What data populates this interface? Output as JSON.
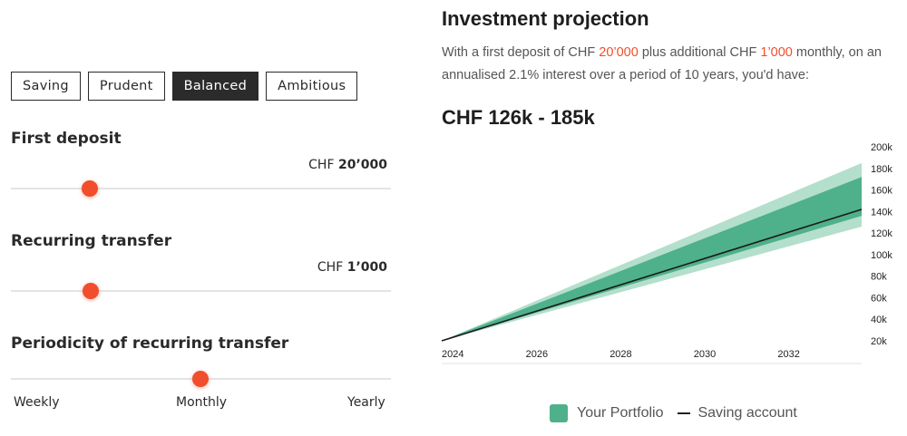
{
  "profiles": {
    "options": [
      "Saving",
      "Prudent",
      "Balanced",
      "Ambitious"
    ],
    "selected": "Balanced"
  },
  "first_deposit": {
    "title": "First deposit",
    "currency": "CHF",
    "amount": "20’000",
    "position_fraction": 0.206
  },
  "recurring_transfer": {
    "title": "Recurring transfer",
    "currency": "CHF",
    "amount": "1’000",
    "position_fraction": 0.21
  },
  "periodicity": {
    "title": "Periodicity of recurring transfer",
    "options": [
      "Weekly",
      "Monthly",
      "Yearly"
    ],
    "selected": "Monthly"
  },
  "projection": {
    "title": "Investment projection",
    "desc_part1": "With a first deposit of CHF ",
    "deposit": "20’000",
    "desc_part2": " plus additional CHF ",
    "recurring": "1’000",
    "desc_part3": " monthly, on an annualised 2.1% interest over a period of 10 years, you'd have:",
    "range": "CHF 126k - 185k"
  },
  "legend": {
    "portfolio": "Your Portfolio",
    "saving": "Saving account"
  },
  "colors": {
    "accent": "#f04e2c",
    "band_outer": "#b3dfcc",
    "band_inner": "#4fb08c",
    "line": "#1a1a1a"
  },
  "chart_data": {
    "type": "area",
    "x_range": [
      2024,
      2034
    ],
    "x_ticks": [
      "2024",
      "2026",
      "2028",
      "2030",
      "2032"
    ],
    "y_range": [
      20,
      200
    ],
    "y_unit": "k",
    "y_ticks": [
      "200k",
      "180k",
      "160k",
      "140k",
      "120k",
      "100k",
      "80k",
      "60k",
      "40k",
      "20k"
    ],
    "series": [
      {
        "name": "Your Portfolio",
        "start": [
          2024,
          20
        ],
        "end_outer": [
          126,
          185
        ],
        "end_inner": [
          136,
          172
        ]
      },
      {
        "name": "Saving account",
        "start": [
          2024,
          20
        ],
        "end": 142
      }
    ]
  }
}
